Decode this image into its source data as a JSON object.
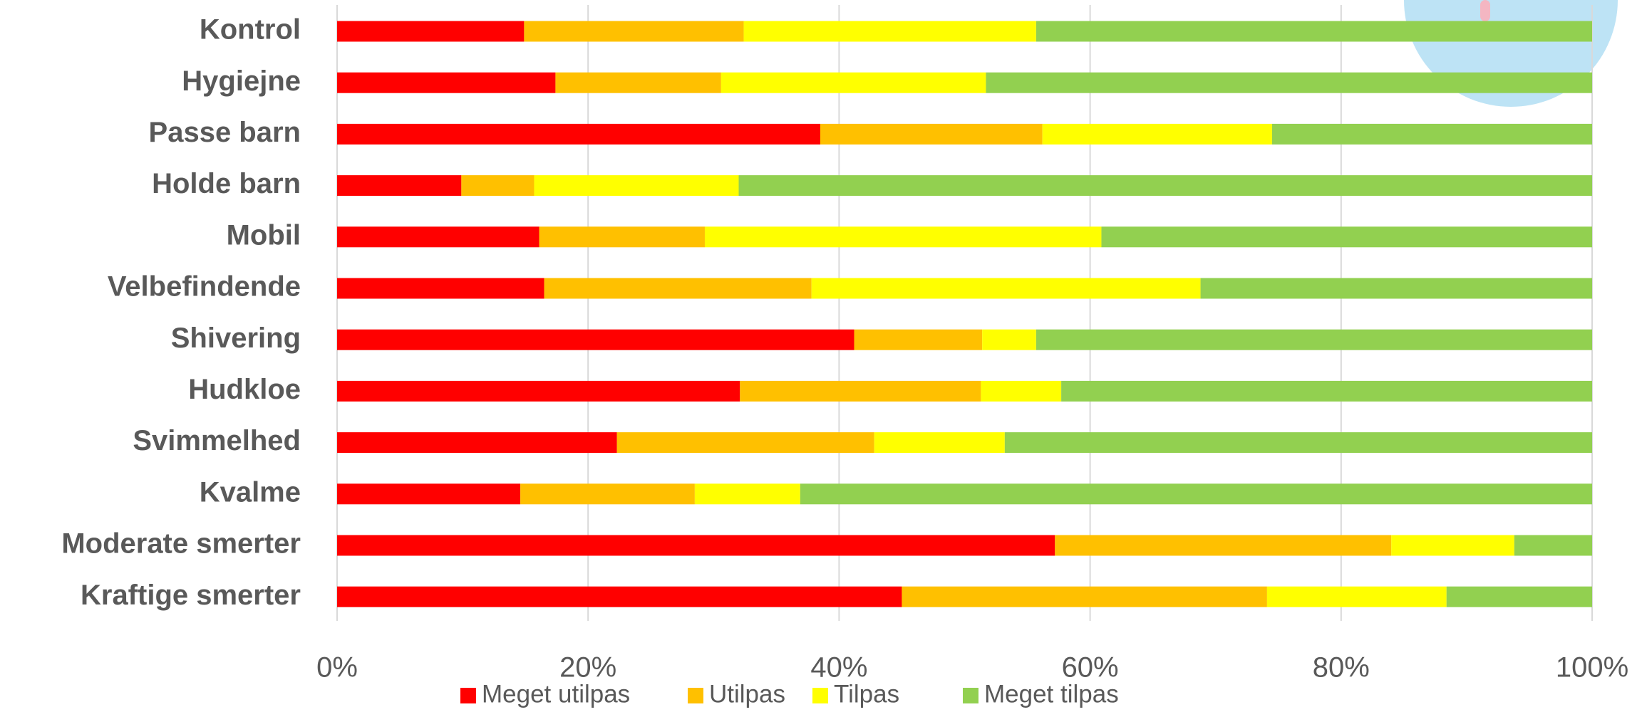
{
  "chart_data": {
    "type": "stacked_bar_horizontal",
    "categories": [
      "Kontrol",
      "Hygiejne",
      "Passe barn",
      "Holde barn",
      "Mobil",
      "Velbefindende",
      "Shivering",
      "Hudkloe",
      "Svimmelhed",
      "Kvalme",
      "Moderate smerter",
      "Kraftige smerter"
    ],
    "series": [
      {
        "name": "Meget utilpas",
        "color": "#ff0000",
        "values": [
          14.9,
          17.4,
          38.5,
          9.9,
          16.1,
          16.5,
          41.2,
          32.1,
          22.3,
          14.6,
          57.2,
          45.0
        ]
      },
      {
        "name": "Utilpas",
        "color": "#ffc000",
        "values": [
          17.5,
          13.2,
          17.7,
          5.8,
          13.2,
          21.3,
          10.2,
          19.2,
          20.5,
          13.9,
          26.8,
          29.1
        ]
      },
      {
        "name": "Tilpas",
        "color": "#ffff00",
        "values": [
          23.3,
          21.1,
          18.3,
          16.3,
          31.6,
          31.0,
          4.3,
          6.4,
          10.4,
          8.4,
          9.8,
          14.3
        ]
      },
      {
        "name": "Meget tilpas",
        "color": "#92d050",
        "values": [
          44.3,
          48.3,
          25.5,
          68.0,
          39.1,
          31.2,
          44.3,
          42.3,
          46.8,
          63.1,
          6.2,
          11.6
        ]
      }
    ],
    "xlim": [
      0,
      100
    ],
    "xticks": [
      {
        "value": 0,
        "label": "0%"
      },
      {
        "value": 20,
        "label": "20%"
      },
      {
        "value": 40,
        "label": "40%"
      },
      {
        "value": 60,
        "label": "60%"
      },
      {
        "value": 80,
        "label": "80%"
      },
      {
        "value": 100,
        "label": "100%"
      }
    ],
    "grid": true,
    "legend": "bottom"
  }
}
